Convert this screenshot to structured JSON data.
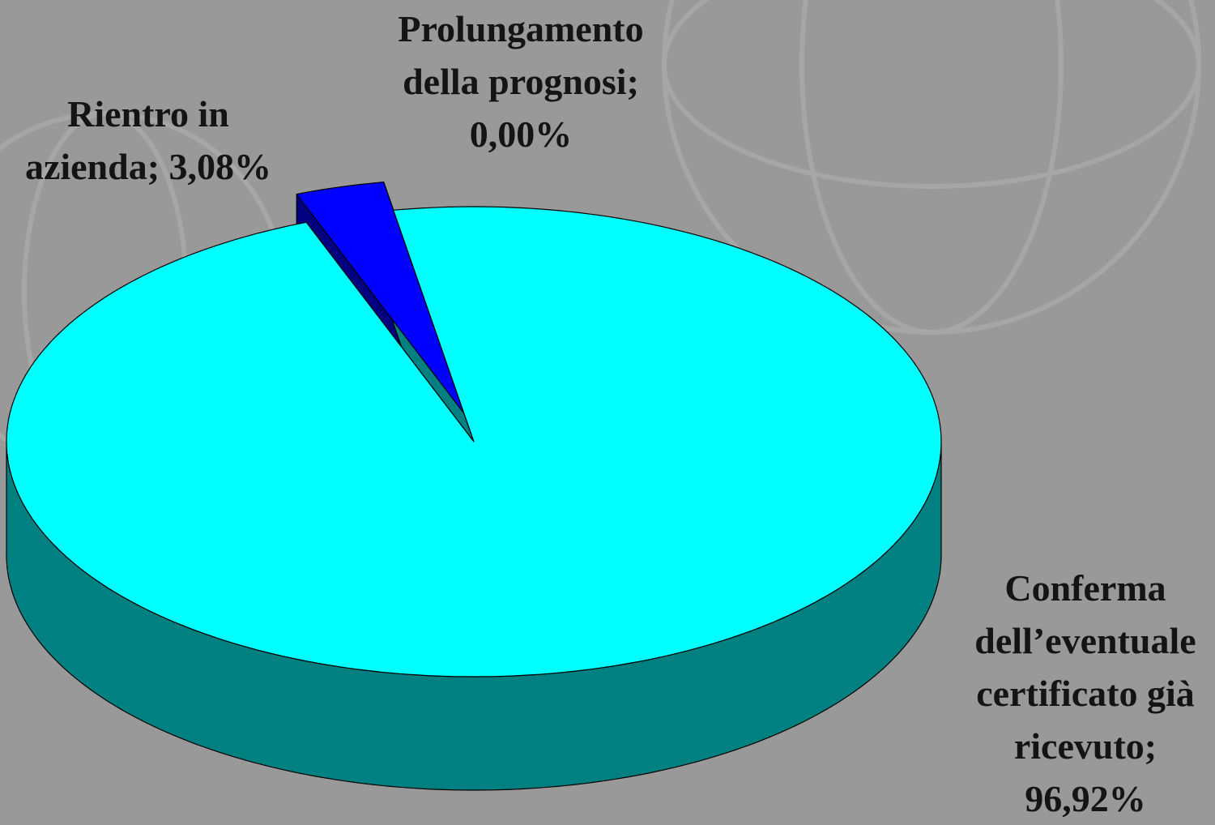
{
  "chart_data": {
    "type": "pie3d",
    "categories": [
      "Rientro in azienda;",
      "Prolungamento della prognosi;",
      "Conferma dell’eventuale certificato già ricevuto;"
    ],
    "values": [
      3.08,
      0.0,
      96.92
    ],
    "value_labels": [
      "3,08%",
      "0,00%",
      "96,92%"
    ],
    "colors": [
      "#0000ff",
      "#999966",
      "#00ffff"
    ],
    "side_colors": [
      "#000080",
      "#808000",
      "#008080"
    ]
  }
}
